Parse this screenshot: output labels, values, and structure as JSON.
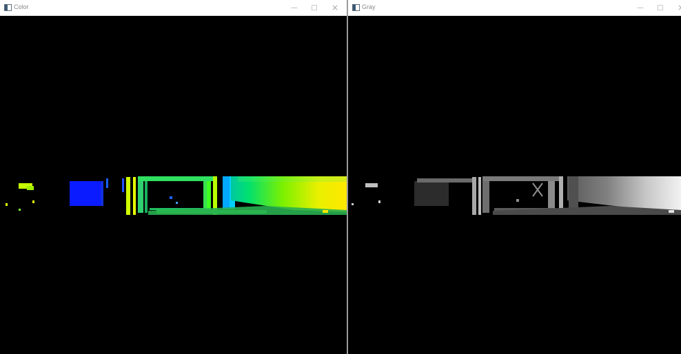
{
  "windows": {
    "color": {
      "title": "Color",
      "controls": {
        "minimize": "—",
        "maximize": "□",
        "close": "×"
      }
    },
    "gray": {
      "title": "Gray",
      "controls": {
        "minimize": "—",
        "maximize": "□",
        "close": "×"
      }
    }
  }
}
